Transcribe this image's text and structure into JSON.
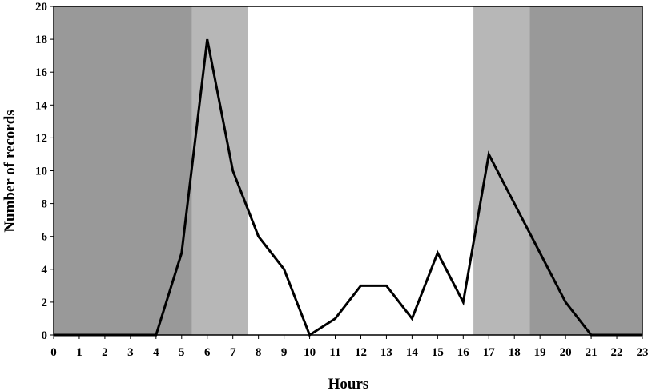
{
  "chart_data": {
    "type": "line",
    "title": "",
    "xlabel": "Hours",
    "ylabel": "Number of records",
    "x": [
      0,
      1,
      2,
      3,
      4,
      5,
      6,
      7,
      8,
      9,
      10,
      11,
      12,
      13,
      14,
      15,
      16,
      17,
      18,
      19,
      20,
      21,
      22,
      23
    ],
    "xlim": [
      0,
      23
    ],
    "ylim": [
      0,
      20
    ],
    "yticks": [
      0,
      2,
      4,
      6,
      8,
      10,
      12,
      14,
      16,
      18,
      20
    ],
    "xticks": [
      0,
      1,
      2,
      3,
      4,
      5,
      6,
      7,
      8,
      9,
      10,
      11,
      12,
      13,
      14,
      15,
      16,
      17,
      18,
      19,
      20,
      21,
      22,
      23
    ],
    "series": [
      {
        "values": [
          0,
          0,
          0,
          0,
          0,
          5,
          18,
          10,
          6,
          4,
          0,
          1,
          3,
          3,
          1,
          5,
          2,
          11,
          8,
          5,
          2,
          0,
          0,
          0
        ],
        "color": "#000000"
      }
    ],
    "shaded_bands": [
      {
        "from": 0,
        "to": 5.4,
        "color": "#999999"
      },
      {
        "from": 5.4,
        "to": 7.6,
        "color": "#b7b7b7"
      },
      {
        "from": 16.4,
        "to": 18.6,
        "color": "#b7b7b7"
      },
      {
        "from": 18.6,
        "to": 23,
        "color": "#999999"
      }
    ],
    "grid": false,
    "legend": "none"
  }
}
